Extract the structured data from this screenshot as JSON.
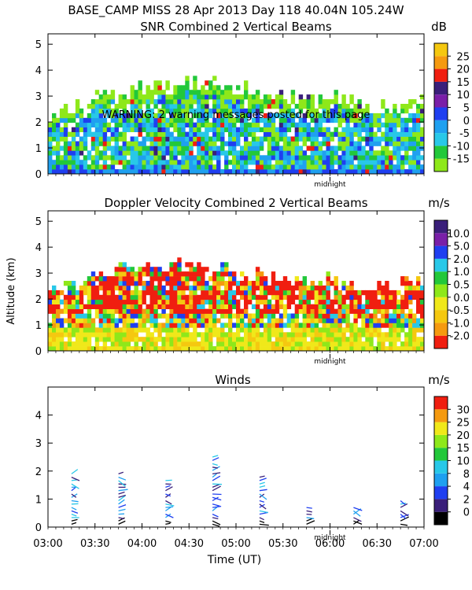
{
  "header": "BASE_CAMP MISS  28 Apr 2013 Day 118 40.04N 105.24W",
  "warning": "WARNING: 2 warning messages posted for this page",
  "ylabel": "Altitude (km)",
  "midnight_label": "midnight",
  "colors": {
    "black": "#000000",
    "purple": "#3a1f7a",
    "violet": "#7a1fa8",
    "blue": "#1f3ff0",
    "sky": "#1fa0f0",
    "cyan": "#28c8e8",
    "green": "#22c83a",
    "lime": "#8ee81a",
    "yellow": "#f0e81a",
    "gold": "#f5c810",
    "orange": "#f59a10",
    "red": "#f01e10",
    "darkred": "#b01010"
  },
  "chart_data": [
    {
      "type": "heatmap",
      "title": "SNR Combined 2 Vertical Beams",
      "units": "dB",
      "ylabel": "Altitude (km)",
      "ylim": [
        0,
        5.4
      ],
      "yticks": [
        "0",
        "1",
        "2",
        "3",
        "4",
        "5"
      ],
      "xlim": [
        0,
        240
      ],
      "colorbar": [
        "-15",
        "-10",
        "-5",
        "0",
        "5",
        "10",
        "15",
        "20",
        "25"
      ],
      "colorbar_colors": [
        "#8ee81a",
        "#22c83a",
        "#28c8e8",
        "#1fa0f0",
        "#1f3ff0",
        "#7a1fa8",
        "#3a1f7a",
        "#f01e10",
        "#f59a10",
        "#f5c810"
      ],
      "midnight_minute": 180,
      "envelope": [
        {
          "t": 0,
          "top": 2.3
        },
        {
          "t": 20,
          "top": 2.6
        },
        {
          "t": 40,
          "top": 3.2
        },
        {
          "t": 60,
          "top": 3.4
        },
        {
          "t": 80,
          "top": 3.5
        },
        {
          "t": 100,
          "top": 3.6
        },
        {
          "t": 120,
          "top": 3.4
        },
        {
          "t": 140,
          "top": 3.1
        },
        {
          "t": 160,
          "top": 3.0
        },
        {
          "t": 180,
          "top": 2.9
        },
        {
          "t": 200,
          "top": 2.7
        },
        {
          "t": 220,
          "top": 2.6
        },
        {
          "t": 240,
          "top": 2.8
        }
      ]
    },
    {
      "type": "heatmap",
      "title": "Doppler Velocity Combined 2 Vertical Beams",
      "units": "m/s",
      "ylabel": "Altitude (km)",
      "ylim": [
        0,
        5.4
      ],
      "yticks": [
        "0",
        "1",
        "2",
        "3",
        "4",
        "5"
      ],
      "xlim": [
        0,
        240
      ],
      "colorbar": [
        "-2.0",
        "-1.0",
        "-0.5",
        "0.0",
        "0.5",
        "1.0",
        "2.0",
        "5.0",
        "10.0"
      ],
      "colorbar_colors": [
        "#f01e10",
        "#f59a10",
        "#f5c810",
        "#f0e81a",
        "#8ee81a",
        "#22c83a",
        "#28c8e8",
        "#1f3ff0",
        "#7a1fa8",
        "#3a1f7a"
      ],
      "midnight_minute": 180,
      "envelope": [
        {
          "t": 0,
          "top": 2.1
        },
        {
          "t": 20,
          "top": 2.7
        },
        {
          "t": 40,
          "top": 3.1
        },
        {
          "t": 60,
          "top": 3.3
        },
        {
          "t": 80,
          "top": 3.3
        },
        {
          "t": 100,
          "top": 3.2
        },
        {
          "t": 120,
          "top": 3.0
        },
        {
          "t": 140,
          "top": 2.9
        },
        {
          "t": 160,
          "top": 2.8
        },
        {
          "t": 180,
          "top": 2.7
        },
        {
          "t": 200,
          "top": 2.6
        },
        {
          "t": 220,
          "top": 2.6
        },
        {
          "t": 240,
          "top": 2.7
        }
      ]
    },
    {
      "type": "scatter",
      "title": "Winds",
      "units": "m/s",
      "ylabel": "Altitude (km)",
      "ylim": [
        0,
        5.0
      ],
      "yticks": [
        "0",
        "1",
        "2",
        "3",
        "4"
      ],
      "xlim": [
        0,
        240
      ],
      "xticks": [
        "03:00",
        "03:30",
        "04:00",
        "04:30",
        "05:00",
        "05:30",
        "06:00",
        "06:30",
        "07:00"
      ],
      "xlabel": "Time (UT)",
      "colorbar": [
        "0",
        "2",
        "4",
        "8",
        "10",
        "15",
        "20",
        "25",
        "30"
      ],
      "colorbar_colors": [
        "#000000",
        "#3a1f7a",
        "#1f3ff0",
        "#1fa0f0",
        "#28c8e8",
        "#22c83a",
        "#8ee81a",
        "#f0e81a",
        "#f59a10",
        "#f01e10"
      ],
      "midnight_minute": 180,
      "profiles": [
        {
          "t": 15,
          "top": 2.0
        },
        {
          "t": 45,
          "top": 2.0
        },
        {
          "t": 75,
          "top": 1.7
        },
        {
          "t": 105,
          "top": 2.6
        },
        {
          "t": 135,
          "top": 1.9
        },
        {
          "t": 165,
          "top": 0.8
        },
        {
          "t": 195,
          "top": 0.8
        },
        {
          "t": 225,
          "top": 1.0
        }
      ]
    }
  ]
}
